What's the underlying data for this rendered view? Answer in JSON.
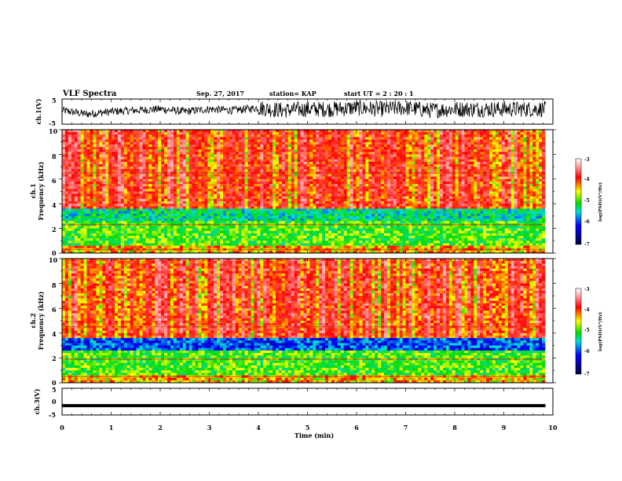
{
  "header": {
    "title": "VLF Spectra",
    "date": "Sep. 27, 2017",
    "station": "station= KAP",
    "start": "start  UT =  2 : 20 : 1"
  },
  "colors": {
    "spec_low": "#000080",
    "spec_mid": "#00dd00",
    "spec_high": "#ff2200",
    "trace": "#000000"
  },
  "chart_data": [
    {
      "type": "line",
      "name": "ch1-waveform",
      "ylabel": "ch.1(V)",
      "ylim": [
        -5,
        5
      ],
      "yticks": [
        "5",
        "-5"
      ],
      "xlim": [
        0,
        10
      ],
      "x": [
        0,
        0.5,
        1,
        1.5,
        2,
        2.5,
        3,
        3.5,
        4,
        4.5,
        5,
        5.5,
        6,
        6.5,
        7,
        7.5,
        8,
        8.5,
        9,
        9.5,
        9.85
      ],
      "y": [
        0.5,
        -1,
        0,
        0.5,
        1,
        0,
        1,
        0.5,
        1.5,
        0.5,
        1,
        1,
        1.5,
        1,
        1.5,
        0.5,
        1,
        1,
        1,
        1,
        1
      ]
    },
    {
      "type": "heatmap",
      "name": "ch1-spectrogram",
      "ylabel": "ch.1\nFrequency (kHz)",
      "ylim": [
        0,
        10
      ],
      "yticks": [
        "10",
        "8",
        "6",
        "4",
        "2",
        "0"
      ],
      "xlim": [
        0,
        10
      ],
      "colorbar": {
        "label": "log(PSD)(V²/Hz)",
        "range": [
          -7,
          -3
        ],
        "ticks": [
          "-3",
          "-4",
          "-5",
          "-6",
          "-7"
        ]
      }
    },
    {
      "type": "heatmap",
      "name": "ch2-spectrogram",
      "ylabel": "ch.2\nFrequency (kHz)",
      "ylim": [
        0,
        10
      ],
      "yticks": [
        "10",
        "8",
        "6",
        "4",
        "2",
        "0"
      ],
      "xlim": [
        0,
        10
      ],
      "colorbar": {
        "label": "log(PSD)(V²/Hz)",
        "range": [
          -7,
          -3
        ],
        "ticks": [
          "-3",
          "-4",
          "-5",
          "-6",
          "-7"
        ]
      }
    },
    {
      "type": "line",
      "name": "ch3-waveform",
      "ylabel": "ch.3(V)",
      "ylim": [
        -5,
        5
      ],
      "yticks": [
        "5",
        "0",
        "-5"
      ],
      "xlim": [
        0,
        10
      ],
      "x": [
        0,
        9.85
      ],
      "y": [
        -1.5,
        -1.5
      ]
    }
  ],
  "xaxis": {
    "label": "Time (min)",
    "ticks": [
      "0",
      "1",
      "2",
      "3",
      "4",
      "5",
      "6",
      "7",
      "8",
      "9",
      "10"
    ]
  }
}
